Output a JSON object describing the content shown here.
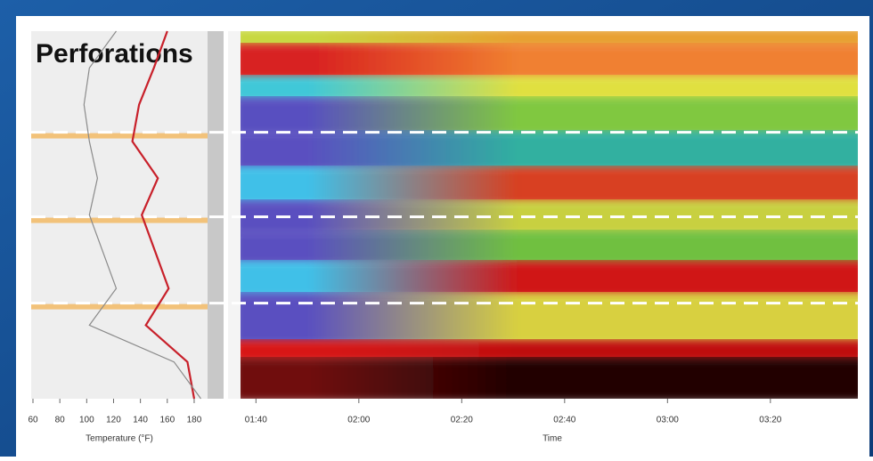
{
  "chart_data": [
    {
      "type": "line",
      "title": "Perforations",
      "x_label": "Temperature (°F)",
      "xlim": [
        60,
        190
      ],
      "xticks": [
        60,
        80,
        100,
        120,
        140,
        160,
        180
      ],
      "ylim": [
        0,
        20
      ],
      "depths": [
        0,
        2,
        4,
        6,
        8,
        10,
        12,
        14,
        16,
        18,
        20
      ],
      "perforations": [
        5.5,
        10.1,
        14.8
      ],
      "series": [
        {
          "color": "#c8202a",
          "values": [
            160,
            150,
            139,
            134,
            153,
            141,
            151,
            161,
            144,
            175,
            180
          ]
        },
        {
          "color": "#8a8a8a",
          "values": [
            122,
            102,
            98,
            102,
            108,
            102,
            112,
            122,
            102,
            165,
            185
          ]
        }
      ]
    },
    {
      "type": "heatmap",
      "x_label": "Time",
      "xlim": [
        97,
        217
      ],
      "xticks": [
        {
          "value": 100,
          "label": "01:40"
        },
        {
          "value": 120,
          "label": "02:00"
        },
        {
          "value": 140,
          "label": "02:20"
        },
        {
          "value": 160,
          "label": "02:40"
        },
        {
          "value": 180,
          "label": "03:00"
        },
        {
          "value": 200,
          "label": "03:20"
        }
      ]
    }
  ]
}
